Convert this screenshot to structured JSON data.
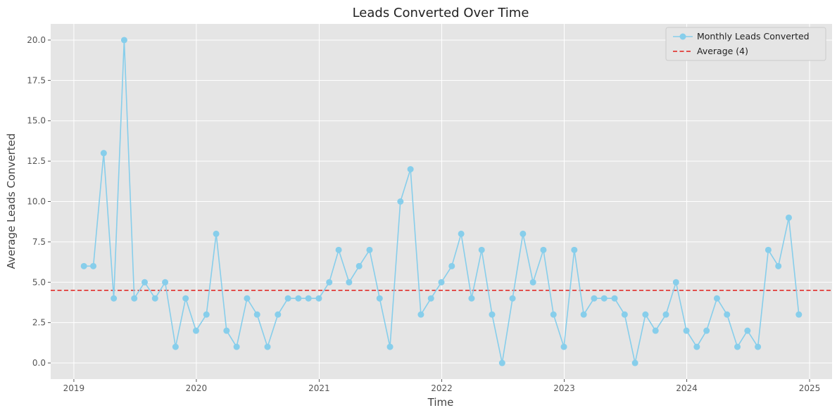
{
  "chart_data": {
    "type": "line",
    "title": "Leads Converted Over Time",
    "xlabel": "Time",
    "ylabel": "Average Leads Converted",
    "xlim": [
      "2018-10-24",
      "2025-03-09"
    ],
    "ylim": [
      -1.0,
      21.0
    ],
    "x_ticks": [
      "2019",
      "2020",
      "2021",
      "2022",
      "2023",
      "2024",
      "2025"
    ],
    "y_ticks": [
      "0.0",
      "2.5",
      "5.0",
      "7.5",
      "10.0",
      "12.5",
      "15.0",
      "17.5",
      "20.0"
    ],
    "grid": true,
    "legend_position": "top-right",
    "series": [
      {
        "name": "Monthly Leads Converted",
        "color": "#87CEEB",
        "marker": "circle",
        "x": [
          "2019-01-31",
          "2019-02-28",
          "2019-03-31",
          "2019-04-30",
          "2019-05-31",
          "2019-06-30",
          "2019-07-31",
          "2019-08-31",
          "2019-09-30",
          "2019-10-31",
          "2019-11-30",
          "2019-12-31",
          "2020-01-31",
          "2020-02-29",
          "2020-03-31",
          "2020-04-30",
          "2020-05-31",
          "2020-06-30",
          "2020-07-31",
          "2020-08-31",
          "2020-09-30",
          "2020-10-31",
          "2020-11-30",
          "2020-12-31",
          "2021-01-31",
          "2021-02-28",
          "2021-03-31",
          "2021-04-30",
          "2021-05-31",
          "2021-06-30",
          "2021-07-31",
          "2021-08-31",
          "2021-09-30",
          "2021-10-31",
          "2021-11-30",
          "2021-12-31",
          "2022-01-31",
          "2022-02-28",
          "2022-03-31",
          "2022-04-30",
          "2022-05-31",
          "2022-06-30",
          "2022-07-31",
          "2022-08-31",
          "2022-09-30",
          "2022-10-31",
          "2022-11-30",
          "2022-12-31",
          "2023-01-31",
          "2023-02-28",
          "2023-03-31",
          "2023-04-30",
          "2023-05-31",
          "2023-06-30",
          "2023-07-31",
          "2023-08-31",
          "2023-09-30",
          "2023-10-31",
          "2023-11-30",
          "2023-12-31",
          "2024-01-31",
          "2024-02-29",
          "2024-03-31",
          "2024-04-30",
          "2024-05-31",
          "2024-06-30",
          "2024-07-31",
          "2024-08-31",
          "2024-09-30",
          "2024-10-31",
          "2024-11-30"
        ],
        "y": [
          6,
          6,
          13,
          4,
          20,
          4,
          5,
          4,
          5,
          1,
          4,
          2,
          3,
          8,
          2,
          1,
          4,
          3,
          1,
          3,
          4,
          4,
          4,
          4,
          5,
          7,
          5,
          6,
          7,
          4,
          1,
          10,
          12,
          3,
          4,
          5,
          6,
          8,
          4,
          7,
          3,
          0,
          4,
          8,
          5,
          7,
          3,
          1,
          7,
          3,
          4,
          4,
          4,
          3,
          0,
          3,
          2,
          3,
          5,
          2,
          1,
          2,
          4,
          3,
          1,
          2,
          1,
          7,
          6,
          9,
          3
        ]
      },
      {
        "name": "Average (4)",
        "color": "#E0201B",
        "style": "dashed",
        "value": 4.5
      }
    ]
  }
}
